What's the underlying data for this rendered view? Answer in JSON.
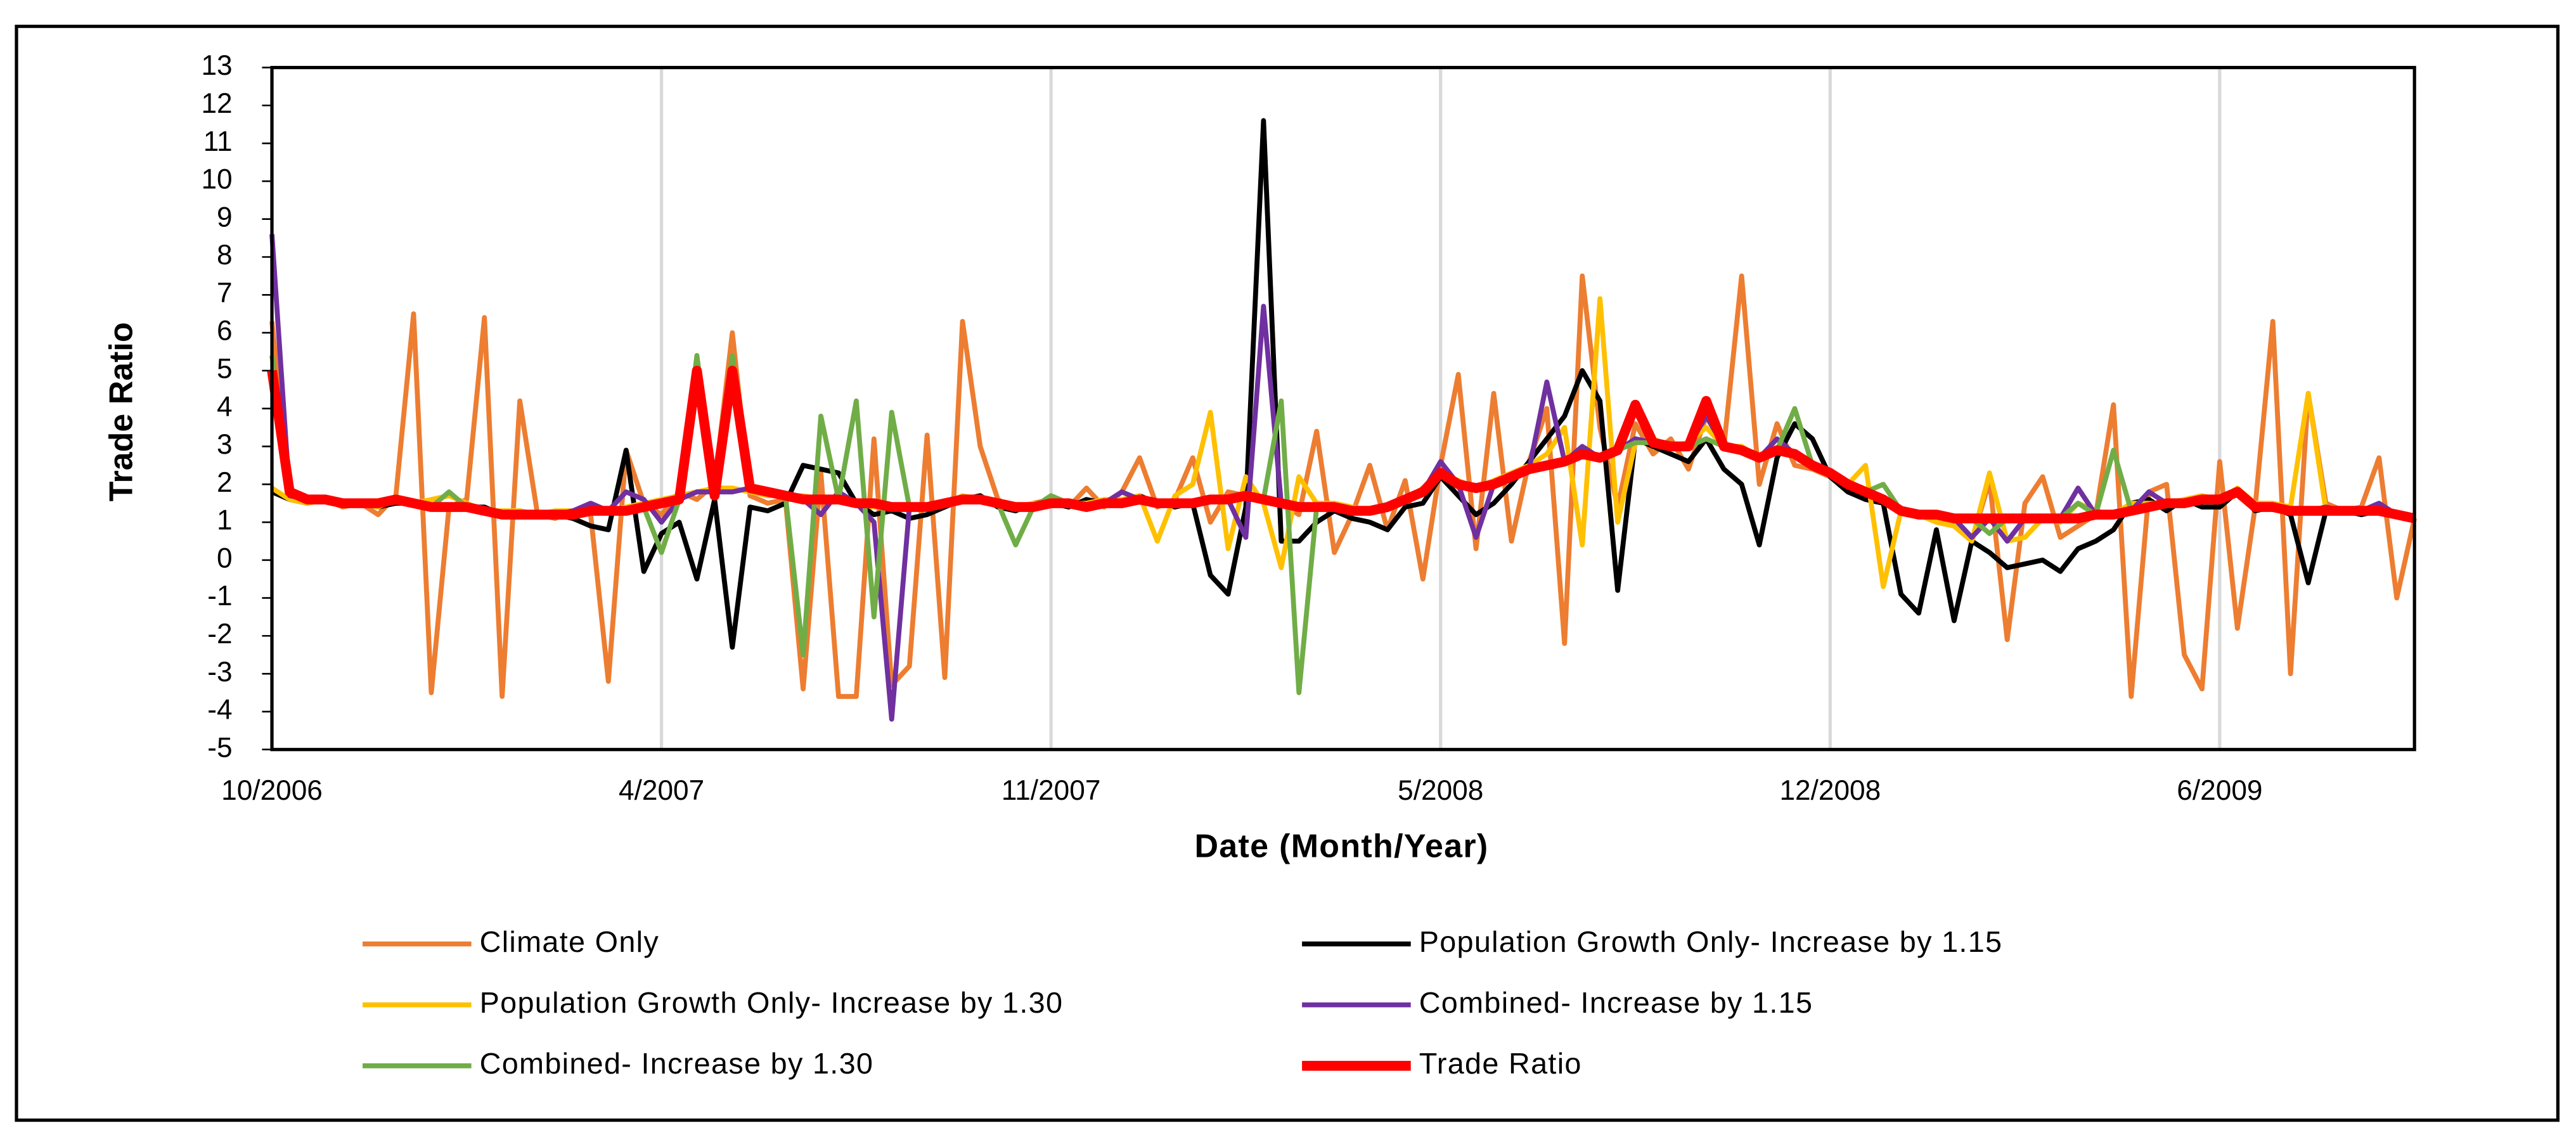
{
  "chart_data": {
    "type": "line",
    "y_label": "Trade Ratio",
    "x_label": "Date (Month/Year)",
    "categories": [
      "10/2006",
      null,
      null,
      null,
      null,
      null,
      null,
      null,
      null,
      null,
      null,
      null,
      null,
      null,
      null,
      null,
      null,
      null,
      null,
      null,
      null,
      null,
      "4/2007",
      null,
      null,
      null,
      null,
      null,
      null,
      null,
      null,
      null,
      null,
      null,
      null,
      null,
      null,
      null,
      null,
      null,
      null,
      null,
      null,
      null,
      "11/2007",
      null,
      null,
      null,
      null,
      null,
      null,
      null,
      null,
      null,
      null,
      null,
      null,
      null,
      null,
      null,
      null,
      null,
      null,
      null,
      null,
      null,
      "5/2008",
      null,
      null,
      null,
      null,
      null,
      null,
      null,
      null,
      null,
      null,
      null,
      null,
      null,
      null,
      null,
      null,
      null,
      null,
      null,
      null,
      null,
      "12/2008",
      null,
      null,
      null,
      null,
      null,
      null,
      null,
      null,
      null,
      null,
      null,
      null,
      null,
      null,
      null,
      null,
      null,
      null,
      null,
      null,
      null,
      "6/2009",
      null,
      null,
      null,
      null,
      null,
      null,
      null,
      null,
      null,
      null,
      null
    ],
    "ylim": [
      -5,
      13
    ],
    "yticks": [
      -5,
      -4,
      -3,
      -2,
      -1,
      0,
      1,
      2,
      3,
      4,
      5,
      6,
      7,
      8,
      9,
      10,
      11,
      12,
      13
    ],
    "grid": "x",
    "legend": "bottom",
    "series": [
      {
        "name": "Climate Only",
        "color": "#ed7d31",
        "values": [
          6.3,
          1.7,
          1.5,
          1.6,
          1.4,
          1.5,
          1.2,
          1.7,
          6.5,
          -3.5,
          1.4,
          1.6,
          6.4,
          -3.6,
          4.2,
          1.2,
          1.1,
          1.3,
          1.2,
          -3.2,
          2.9,
          1.5,
          1.2,
          1.8,
          1.6,
          2.0,
          6.0,
          1.7,
          1.5,
          1.6,
          -3.4,
          2.3,
          -3.6,
          -3.6,
          3.2,
          -3.3,
          -2.8,
          3.3,
          -3.1,
          6.3,
          3.0,
          1.6,
          1.3,
          1.5,
          1.6,
          1.4,
          1.9,
          1.4,
          1.8,
          2.7,
          1.4,
          1.6,
          2.7,
          1.0,
          1.8,
          1.7,
          1.6,
          1.5,
          1.2,
          3.4,
          0.2,
          1.2,
          2.5,
          0.8,
          2.1,
          -0.5,
          2.5,
          4.9,
          0.3,
          4.4,
          0.5,
          2.6,
          4.0,
          -2.2,
          7.5,
          3.5,
          1.4,
          3.6,
          2.8,
          3.2,
          2.4,
          3.8,
          3.0,
          7.5,
          2.0,
          3.6,
          2.5,
          2.4,
          2.2,
          1.9,
          1.7,
          1.5,
          1.3,
          1.2,
          1.0,
          0.9,
          0.5,
          2.1,
          -2.1,
          1.5,
          2.2,
          0.6,
          0.9,
          1.2,
          4.1,
          -3.6,
          1.8,
          2.0,
          -2.5,
          -3.4,
          2.6,
          -1.8,
          1.4,
          6.3,
          -3.0,
          4.4,
          1.5,
          1.3,
          1.4,
          2.7,
          -1.0,
          1.1
        ]
      },
      {
        "name": "Population Growth Only- Increase by 1.15",
        "color": "#000000",
        "values": [
          1.8,
          1.6,
          1.5,
          1.6,
          1.5,
          1.5,
          1.4,
          1.5,
          1.5,
          1.4,
          1.4,
          1.4,
          1.4,
          1.2,
          1.3,
          1.2,
          1.2,
          1.1,
          0.9,
          0.8,
          2.9,
          -0.3,
          0.7,
          1.0,
          -0.5,
          1.6,
          -2.3,
          1.4,
          1.3,
          1.5,
          2.5,
          2.4,
          2.3,
          1.5,
          1.2,
          1.3,
          1.1,
          1.2,
          1.4,
          1.6,
          1.7,
          1.4,
          1.3,
          1.5,
          1.5,
          1.4,
          1.6,
          1.5,
          1.5,
          1.7,
          1.5,
          1.4,
          1.5,
          -0.4,
          -0.9,
          1.4,
          11.6,
          0.5,
          0.5,
          1.0,
          1.3,
          1.1,
          1.0,
          0.8,
          1.4,
          1.5,
          2.2,
          1.7,
          1.2,
          1.5,
          2.0,
          2.6,
          3.2,
          3.8,
          5.0,
          4.2,
          -0.8,
          3.2,
          3.0,
          2.8,
          2.6,
          3.2,
          2.4,
          2.0,
          0.4,
          2.7,
          3.6,
          3.2,
          2.2,
          1.8,
          1.6,
          1.5,
          -0.9,
          -1.4,
          0.8,
          -1.6,
          0.5,
          0.2,
          -0.2,
          -0.1,
          0.0,
          -0.3,
          0.3,
          0.5,
          0.8,
          1.5,
          1.6,
          1.3,
          1.6,
          1.4,
          1.4,
          1.8,
          1.3,
          1.4,
          1.2,
          -0.6,
          1.3,
          1.3,
          1.2,
          1.3,
          1.2,
          1.1
        ]
      },
      {
        "name": "Population Growth Only- Increase by 1.30",
        "color": "#ffc000",
        "values": [
          1.9,
          1.6,
          1.5,
          1.6,
          1.5,
          1.5,
          1.4,
          1.6,
          1.5,
          1.6,
          1.7,
          1.5,
          1.3,
          1.3,
          1.3,
          1.2,
          1.3,
          1.3,
          1.3,
          1.3,
          1.4,
          1.5,
          1.6,
          1.7,
          1.8,
          1.9,
          1.9,
          1.8,
          1.7,
          1.7,
          1.7,
          1.6,
          1.6,
          1.5,
          1.4,
          1.4,
          1.4,
          1.4,
          1.5,
          1.7,
          1.6,
          1.5,
          1.4,
          1.5,
          1.5,
          1.5,
          1.5,
          1.6,
          1.6,
          1.7,
          0.5,
          1.7,
          2.0,
          3.9,
          0.3,
          2.2,
          1.5,
          -0.2,
          2.2,
          1.5,
          1.5,
          1.4,
          1.3,
          1.4,
          1.6,
          1.9,
          2.3,
          2.1,
          1.9,
          2.1,
          2.3,
          2.5,
          2.8,
          3.5,
          0.4,
          6.9,
          1.0,
          3.1,
          3.2,
          3.0,
          3.1,
          3.5,
          3.0,
          3.0,
          2.7,
          2.9,
          2.8,
          2.5,
          2.3,
          2.0,
          2.5,
          -0.7,
          1.3,
          1.2,
          1.0,
          0.9,
          0.5,
          2.3,
          0.5,
          0.6,
          1.1,
          1.0,
          1.5,
          1.3,
          1.2,
          1.5,
          1.5,
          1.5,
          1.6,
          1.7,
          1.6,
          1.9,
          1.5,
          1.5,
          1.4,
          4.4,
          1.3,
          1.3,
          1.3,
          1.3,
          1.2,
          1.1
        ]
      },
      {
        "name": "Combined- Increase by 1.15",
        "color": "#7030a0",
        "values": [
          8.6,
          1.7,
          1.6,
          1.6,
          1.5,
          1.5,
          1.5,
          1.6,
          1.5,
          1.4,
          1.4,
          1.4,
          1.3,
          1.2,
          1.2,
          1.2,
          1.2,
          1.3,
          1.5,
          1.3,
          1.8,
          1.6,
          1.0,
          1.6,
          1.8,
          1.8,
          1.8,
          1.9,
          1.8,
          1.7,
          1.6,
          1.2,
          1.8,
          1.5,
          1.0,
          -4.2,
          1.4,
          1.4,
          1.5,
          1.6,
          1.6,
          1.5,
          1.4,
          1.4,
          1.5,
          1.5,
          1.4,
          1.5,
          1.8,
          1.6,
          1.5,
          1.5,
          1.5,
          1.6,
          1.6,
          0.6,
          6.7,
          1.5,
          1.4,
          1.4,
          1.4,
          1.3,
          1.3,
          1.4,
          1.6,
          1.8,
          2.6,
          2.0,
          0.6,
          2.0,
          2.2,
          2.4,
          4.7,
          2.6,
          3.0,
          2.7,
          2.9,
          3.2,
          3.1,
          3.0,
          3.0,
          3.8,
          3.0,
          2.9,
          2.7,
          3.2,
          2.8,
          2.5,
          2.3,
          2.0,
          1.8,
          1.6,
          1.3,
          1.2,
          1.2,
          1.1,
          0.6,
          1.1,
          0.5,
          1.1,
          1.1,
          1.1,
          1.9,
          1.2,
          1.2,
          1.3,
          1.8,
          1.5,
          1.5,
          1.6,
          1.6,
          1.8,
          1.4,
          1.4,
          1.3,
          1.3,
          1.4,
          1.3,
          1.3,
          1.5,
          1.2,
          1.1
        ]
      },
      {
        "name": "Combined- Increase by 1.30",
        "color": "#70ad47",
        "values": [
          5.4,
          1.8,
          1.6,
          1.6,
          1.5,
          1.5,
          1.5,
          1.6,
          1.5,
          1.4,
          1.8,
          1.4,
          1.3,
          1.2,
          1.2,
          1.2,
          1.2,
          1.2,
          1.3,
          1.3,
          1.3,
          1.4,
          0.2,
          1.6,
          5.4,
          1.7,
          5.4,
          1.9,
          1.8,
          1.7,
          -2.5,
          3.8,
          1.6,
          4.2,
          -1.5,
          3.9,
          1.4,
          1.4,
          1.5,
          1.6,
          1.6,
          1.5,
          0.4,
          1.4,
          1.7,
          1.5,
          1.4,
          1.5,
          1.5,
          1.6,
          1.5,
          1.5,
          1.5,
          1.6,
          1.6,
          1.7,
          1.6,
          4.2,
          -3.5,
          1.4,
          1.4,
          1.3,
          1.3,
          1.4,
          1.6,
          1.8,
          2.3,
          2.0,
          1.9,
          2.0,
          2.2,
          2.4,
          2.5,
          2.6,
          2.8,
          2.7,
          2.9,
          3.1,
          3.1,
          3.0,
          3.0,
          3.2,
          3.0,
          2.9,
          2.7,
          2.9,
          4.0,
          2.5,
          2.3,
          2.0,
          1.8,
          2.0,
          1.3,
          1.2,
          1.2,
          1.1,
          1.1,
          0.7,
          1.1,
          1.1,
          1.1,
          1.1,
          1.5,
          1.2,
          2.9,
          1.3,
          1.4,
          1.5,
          1.5,
          1.6,
          1.6,
          1.8,
          1.4,
          1.4,
          1.3,
          1.3,
          1.3,
          1.3,
          1.3,
          1.3,
          1.2,
          1.1
        ]
      },
      {
        "name": "Trade Ratio",
        "color": "#ff0000",
        "values": [
          5.0,
          1.8,
          1.6,
          1.6,
          1.5,
          1.5,
          1.5,
          1.6,
          1.5,
          1.4,
          1.4,
          1.4,
          1.3,
          1.2,
          1.2,
          1.2,
          1.2,
          1.2,
          1.3,
          1.3,
          1.3,
          1.4,
          1.5,
          1.6,
          5.0,
          1.7,
          5.0,
          1.9,
          1.8,
          1.7,
          1.6,
          1.6,
          1.6,
          1.5,
          1.5,
          1.4,
          1.4,
          1.4,
          1.5,
          1.6,
          1.6,
          1.5,
          1.4,
          1.4,
          1.5,
          1.5,
          1.4,
          1.5,
          1.5,
          1.6,
          1.5,
          1.5,
          1.5,
          1.6,
          1.6,
          1.7,
          1.6,
          1.5,
          1.4,
          1.4,
          1.4,
          1.3,
          1.3,
          1.4,
          1.6,
          1.8,
          2.3,
          2.0,
          1.9,
          2.0,
          2.2,
          2.4,
          2.5,
          2.6,
          2.8,
          2.7,
          2.9,
          4.1,
          3.1,
          3.0,
          3.0,
          4.2,
          3.0,
          2.9,
          2.7,
          2.9,
          2.8,
          2.5,
          2.3,
          2.0,
          1.8,
          1.6,
          1.3,
          1.2,
          1.2,
          1.1,
          1.1,
          1.1,
          1.1,
          1.1,
          1.1,
          1.1,
          1.1,
          1.2,
          1.2,
          1.3,
          1.4,
          1.5,
          1.5,
          1.6,
          1.6,
          1.8,
          1.4,
          1.4,
          1.3,
          1.3,
          1.3,
          1.3,
          1.3,
          1.3,
          1.2,
          1.1
        ]
      }
    ]
  }
}
